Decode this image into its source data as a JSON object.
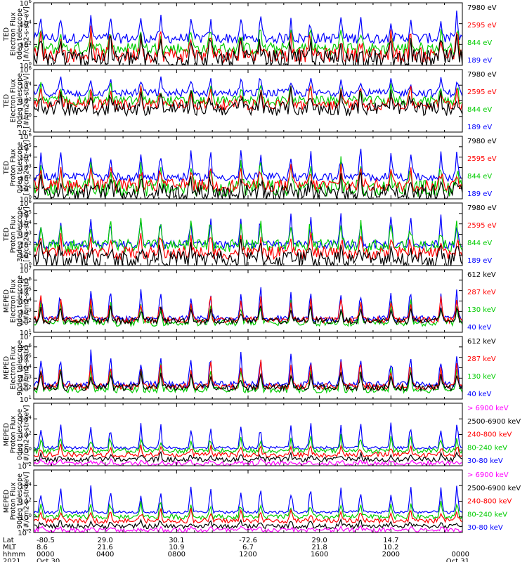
{
  "chart_data": {
    "type": "line",
    "panels": [
      {
        "ylabel": [
          "TED",
          "Electron Flux",
          "0deg telescope",
          "[#/cm2-s-str-eV]"
        ],
        "yticks": [
          {
            "base": "10",
            "exp": "6"
          },
          {
            "base": "10",
            "exp": "4"
          },
          {
            "base": "10",
            "exp": "2"
          },
          {
            "base": "10",
            "exp": "0"
          }
        ],
        "ylog": [
          0,
          6
        ],
        "series": [
          {
            "name": "7980 eV",
            "color": "#000000",
            "base": 0.6,
            "amp": 2.2,
            "noise": 0.9
          },
          {
            "name": "2595 eV",
            "color": "#ff0000",
            "base": 1.0,
            "amp": 2.3,
            "noise": 0.7
          },
          {
            "name": "844 eV",
            "color": "#00cc00",
            "base": 1.6,
            "amp": 2.2,
            "noise": 0.6
          },
          {
            "name": "189 eV",
            "color": "#0000ff",
            "base": 2.6,
            "amp": 2.3,
            "noise": 0.5
          }
        ]
      },
      {
        "ylabel": [
          "TED",
          "Electron Flux",
          "30deg telescope",
          "[#/cm2-s-str-eV]"
        ],
        "yticks": [
          {
            "base": "10",
            "exp": "6"
          },
          {
            "base": "10",
            "exp": "4"
          },
          {
            "base": "10",
            "exp": "2"
          },
          {
            "base": "10",
            "exp": "0"
          },
          {
            "base": "10",
            "exp": "-2"
          }
        ],
        "ylog": [
          -2,
          6
        ],
        "series": [
          {
            "name": "7980 eV",
            "color": "#000000",
            "base": 1.0,
            "amp": 2.2,
            "noise": 0.9
          },
          {
            "name": "2595 eV",
            "color": "#ff0000",
            "base": 1.5,
            "amp": 2.3,
            "noise": 0.7
          },
          {
            "name": "844 eV",
            "color": "#00cc00",
            "base": 2.0,
            "amp": 2.2,
            "noise": 0.6
          },
          {
            "name": "189 eV",
            "color": "#0000ff",
            "base": 3.0,
            "amp": 2.2,
            "noise": 0.5
          }
        ]
      },
      {
        "ylabel": [
          "TED",
          "Proton Flux",
          "0deg telescope",
          "[#/cm2-s-str-eV]"
        ],
        "yticks": [
          {
            "base": "10",
            "exp": "6"
          },
          {
            "base": "10",
            "exp": "5"
          },
          {
            "base": "10",
            "exp": "4"
          },
          {
            "base": "10",
            "exp": "3"
          },
          {
            "base": "10",
            "exp": "2"
          },
          {
            "base": "10",
            "exp": "1"
          },
          {
            "base": "10",
            "exp": "0"
          }
        ],
        "ylog": [
          0,
          6
        ],
        "series": [
          {
            "name": "7980 eV",
            "color": "#000000",
            "base": 0.6,
            "amp": 1.6,
            "noise": 0.8
          },
          {
            "name": "2595 eV",
            "color": "#ff0000",
            "base": 1.3,
            "amp": 1.8,
            "noise": 0.6
          },
          {
            "name": "844 eV",
            "color": "#00cc00",
            "base": 1.0,
            "amp": 2.8,
            "noise": 0.8
          },
          {
            "name": "189 eV",
            "color": "#0000ff",
            "base": 2.1,
            "amp": 2.6,
            "noise": 0.4
          }
        ]
      },
      {
        "ylabel": [
          "TED",
          "Proton Flux",
          "30deg telescope",
          "[#/cm2-s-str-eV]"
        ],
        "yticks": [
          {
            "base": "10",
            "exp": "6"
          },
          {
            "base": "10",
            "exp": "5"
          },
          {
            "base": "10",
            "exp": "4"
          },
          {
            "base": "10",
            "exp": "3"
          },
          {
            "base": "10",
            "exp": "2"
          },
          {
            "base": "10",
            "exp": "1"
          },
          {
            "base": "10",
            "exp": "0"
          }
        ],
        "ylog": [
          0,
          6
        ],
        "series": [
          {
            "name": "7980 eV",
            "color": "#000000",
            "base": 0.6,
            "amp": 1.5,
            "noise": 0.8
          },
          {
            "name": "2595 eV",
            "color": "#ff0000",
            "base": 1.2,
            "amp": 1.7,
            "noise": 0.6
          },
          {
            "name": "844 eV",
            "color": "#00cc00",
            "base": 1.9,
            "amp": 2.6,
            "noise": 0.6
          },
          {
            "name": "189 eV",
            "color": "#0000ff",
            "base": 2.0,
            "amp": 2.8,
            "noise": 0.4
          }
        ]
      },
      {
        "ylabel": [
          "MEPED",
          "Electron Flux",
          "0deg telescope",
          "[#/cm2-s-str]"
        ],
        "yticks": [
          {
            "base": "10",
            "exp": "7"
          },
          {
            "base": "10",
            "exp": "6"
          },
          {
            "base": "10",
            "exp": "5"
          },
          {
            "base": "10",
            "exp": "4"
          },
          {
            "base": "10",
            "exp": "3"
          },
          {
            "base": "10",
            "exp": "2"
          },
          {
            "base": "10",
            "exp": "1"
          }
        ],
        "ylog": [
          1,
          7
        ],
        "series": [
          {
            "name": "612 keV",
            "color": "#000000",
            "base": 2.1,
            "amp": 1.5,
            "noise": 0.3
          },
          {
            "name": "287 keV",
            "color": "#ff0000",
            "base": 2.2,
            "amp": 2.4,
            "noise": 0.3
          },
          {
            "name": "130 keV",
            "color": "#00cc00",
            "base": 1.9,
            "amp": 2.2,
            "noise": 0.3
          },
          {
            "name": "40 keV",
            "color": "#0000ff",
            "base": 2.3,
            "amp": 3.2,
            "noise": 0.3
          }
        ]
      },
      {
        "ylabel": [
          "MEPED",
          "Electron Flux",
          "90deg telescope",
          "[#/cm2-s-str]"
        ],
        "yticks": [
          {
            "base": "10",
            "exp": "7"
          },
          {
            "base": "10",
            "exp": "6"
          },
          {
            "base": "10",
            "exp": "5"
          },
          {
            "base": "10",
            "exp": "4"
          },
          {
            "base": "10",
            "exp": "3"
          },
          {
            "base": "10",
            "exp": "2"
          },
          {
            "base": "10",
            "exp": "1"
          }
        ],
        "ylog": [
          1,
          7
        ],
        "series": [
          {
            "name": "612 keV",
            "color": "#000000",
            "base": 2.1,
            "amp": 1.6,
            "noise": 0.3
          },
          {
            "name": "287 keV",
            "color": "#ff0000",
            "base": 2.2,
            "amp": 2.6,
            "noise": 0.3
          },
          {
            "name": "130 keV",
            "color": "#00cc00",
            "base": 1.9,
            "amp": 2.4,
            "noise": 0.3
          },
          {
            "name": "40 keV",
            "color": "#0000ff",
            "base": 2.4,
            "amp": 3.3,
            "noise": 0.3
          }
        ]
      },
      {
        "ylabel": [
          "MEPED",
          "Proton Flux",
          "0deg telescope",
          "[#/cm2-s-str-keV]"
        ],
        "yticks": [
          {
            "base": "10",
            "exp": "4"
          },
          {
            "base": "10",
            "exp": "2"
          },
          {
            "base": "10",
            "exp": "0"
          },
          {
            "base": "10",
            "exp": "-2"
          }
        ],
        "ylog": [
          -2,
          6
        ],
        "series": [
          {
            "name": "> 6900 keV",
            "color": "#ff00ff",
            "base": -1.7,
            "amp": 0.5,
            "noise": 0.3
          },
          {
            "name": "2500-6900 keV",
            "color": "#000000",
            "base": -1.2,
            "amp": 0.8,
            "noise": 0.3
          },
          {
            "name": "240-800 keV",
            "color": "#ff0000",
            "base": -0.6,
            "amp": 1.3,
            "noise": 0.3
          },
          {
            "name": "80-240 keV",
            "color": "#00cc00",
            "base": -0.1,
            "amp": 2.0,
            "noise": 0.3
          },
          {
            "name": "30-80 keV",
            "color": "#0000ff",
            "base": 0.3,
            "amp": 3.4,
            "noise": 0.2
          }
        ]
      },
      {
        "ylabel": [
          "MEPED",
          "Proton Flux",
          "90deg telescope",
          "[#/cm2-s-str-keV]"
        ],
        "yticks": [
          {
            "base": "10",
            "exp": "4"
          },
          {
            "base": "10",
            "exp": "2"
          },
          {
            "base": "10",
            "exp": "0"
          },
          {
            "base": "10",
            "exp": "-2"
          }
        ],
        "ylog": [
          -2,
          6
        ],
        "series": [
          {
            "name": "> 6900 keV",
            "color": "#ff00ff",
            "base": -1.7,
            "amp": 0.5,
            "noise": 0.3
          },
          {
            "name": "2500-6900 keV",
            "color": "#000000",
            "base": -1.2,
            "amp": 0.8,
            "noise": 0.3
          },
          {
            "name": "240-800 keV",
            "color": "#ff0000",
            "base": -0.5,
            "amp": 1.5,
            "noise": 0.3
          },
          {
            "name": "80-240 keV",
            "color": "#00cc00",
            "base": 0.0,
            "amp": 2.2,
            "noise": 0.3
          },
          {
            "name": "30-80 keV",
            "color": "#0000ff",
            "base": 0.6,
            "amp": 3.6,
            "noise": 0.2
          }
        ]
      }
    ],
    "pass_times_hours": [
      0.4,
      1.5,
      3.2,
      4.3,
      6.0,
      7.1,
      8.8,
      9.9,
      11.6,
      12.7,
      14.4,
      15.5,
      17.2,
      18.3,
      20.0,
      21.1,
      22.8,
      23.7
    ],
    "x_axis": {
      "row_labels": [
        "Lat",
        "MLT",
        "hhmm",
        "2021"
      ],
      "ticks": [
        {
          "hour": 0,
          "lat": "-80.5",
          "mlt": "8.6",
          "hhmm": "0000",
          "date": "Oct 30"
        },
        {
          "hour": 4,
          "lat": "29.0",
          "mlt": "21.6",
          "hhmm": "0400",
          "date": ""
        },
        {
          "hour": 8,
          "lat": "30.1",
          "mlt": "10.9",
          "hhmm": "0800",
          "date": ""
        },
        {
          "hour": 12,
          "lat": "-72.6",
          "mlt": "6.7",
          "hhmm": "1200",
          "date": ""
        },
        {
          "hour": 16,
          "lat": "29.0",
          "mlt": "21.8",
          "hhmm": "1600",
          "date": ""
        },
        {
          "hour": 20,
          "lat": "14.7",
          "mlt": "10.2",
          "hhmm": "2000",
          "date": ""
        },
        {
          "hour": 24,
          "lat": "",
          "mlt": "",
          "hhmm": "0000",
          "date": "Oct 31"
        }
      ],
      "xlim": [
        0,
        24
      ]
    }
  }
}
